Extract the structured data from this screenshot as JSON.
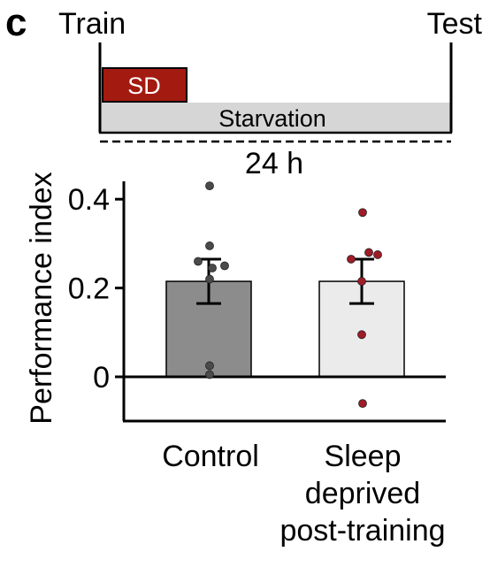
{
  "panel": {
    "letter": "c"
  },
  "timeline": {
    "start_label": "Train",
    "end_label": "Test",
    "sd_label": "SD",
    "starvation_label": "Starvation",
    "duration_label": "24 h"
  },
  "chart_data": {
    "type": "bar",
    "title": "",
    "ylabel": "Performance index",
    "xlabel": "",
    "ylim": [
      -0.1,
      0.45
    ],
    "yticks": [
      0,
      0.2,
      0.4
    ],
    "ytick_labels": [
      "0",
      "0.2",
      "0.4"
    ],
    "categories": [
      "Control",
      "Sleep deprived post-training"
    ],
    "category_label_lines": [
      [
        "Control"
      ],
      [
        "Sleep",
        "deprived",
        "post-training"
      ]
    ],
    "values": [
      0.215,
      0.215
    ],
    "error": [
      0.05,
      0.05
    ],
    "bar_colors": [
      "#8c8c8c",
      "#ebebeb"
    ],
    "point_colors": [
      "#4a4a4a",
      "#a01c28"
    ],
    "points": [
      [
        0.43,
        0.295,
        0.26,
        0.25,
        0.245,
        0.22,
        0.025,
        0.005
      ],
      [
        0.37,
        0.28,
        0.275,
        0.265,
        0.215,
        0.095,
        -0.06
      ]
    ],
    "grid": false
  },
  "colors": {
    "sd_box": "#a31a10",
    "starvation_box": "#d6d6d6"
  }
}
